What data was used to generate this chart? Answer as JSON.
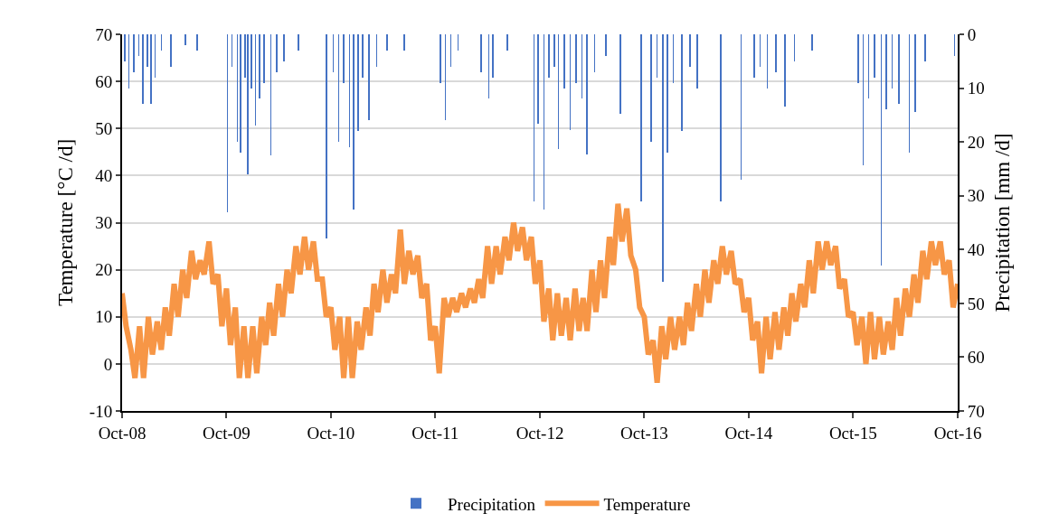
{
  "chart_data": {
    "type": "line",
    "ylabel": "Temperature [°C /d]",
    "y2label": "Precipitation [mm /d]",
    "xlim": [
      "2008-10-01",
      "2016-10-01"
    ],
    "xticks": [
      {
        "value": "2008-10-01",
        "label": "Oct-08"
      },
      {
        "value": "2009-10-01",
        "label": "Oct-09"
      },
      {
        "value": "2010-10-01",
        "label": "Oct-10"
      },
      {
        "value": "2011-10-01",
        "label": "Oct-11"
      },
      {
        "value": "2012-10-01",
        "label": "Oct-12"
      },
      {
        "value": "2013-10-01",
        "label": "Oct-13"
      },
      {
        "value": "2014-10-01",
        "label": "Oct-14"
      },
      {
        "value": "2015-10-01",
        "label": "Oct-15"
      },
      {
        "value": "2016-10-01",
        "label": "Oct-16"
      }
    ],
    "ylim": [
      -10,
      70
    ],
    "yticks": [
      -10,
      0,
      10,
      20,
      30,
      40,
      50,
      60,
      70
    ],
    "y2lim": [
      70,
      0
    ],
    "y2ticks": [
      0,
      10,
      20,
      30,
      40,
      50,
      60,
      70
    ],
    "grid": "y",
    "legend": "bottom",
    "series": [
      {
        "name": "Precipitation",
        "type": "bar",
        "axis": "y2",
        "color": "#4472c4",
        "x": [
          "2008-10-10",
          "2008-10-25",
          "2008-11-12",
          "2008-11-28",
          "2008-12-12",
          "2008-12-28",
          "2009-01-10",
          "2009-01-25",
          "2009-02-15",
          "2009-03-20",
          "2009-05-10",
          "2009-06-20",
          "2009-10-05",
          "2009-10-20",
          "2009-11-08",
          "2009-11-20",
          "2009-12-05",
          "2009-12-15",
          "2009-12-28",
          "2010-01-10",
          "2010-01-25",
          "2010-02-10",
          "2010-03-05",
          "2010-03-25",
          "2010-04-20",
          "2010-06-10",
          "2010-09-15",
          "2010-10-10",
          "2010-10-28",
          "2010-11-15",
          "2010-12-05",
          "2010-12-20",
          "2011-01-05",
          "2011-01-20",
          "2011-02-12",
          "2011-03-10",
          "2011-04-15",
          "2011-06-15",
          "2011-10-20",
          "2011-11-05",
          "2011-11-25",
          "2011-12-20",
          "2012-03-10",
          "2012-04-05",
          "2012-04-20",
          "2012-06-10",
          "2012-09-10",
          "2012-09-25",
          "2012-10-15",
          "2012-11-01",
          "2012-11-20",
          "2012-12-05",
          "2012-12-25",
          "2013-01-15",
          "2013-02-05",
          "2013-02-25",
          "2013-03-15",
          "2013-04-10",
          "2013-05-20",
          "2013-07-10",
          "2013-09-20",
          "2013-10-25",
          "2013-11-15",
          "2013-12-05",
          "2013-12-20",
          "2014-01-10",
          "2014-02-10",
          "2014-03-10",
          "2014-04-05",
          "2014-06-25",
          "2014-09-05",
          "2014-10-20",
          "2014-11-10",
          "2014-12-05",
          "2015-01-05",
          "2015-02-05",
          "2015-03-10",
          "2015-05-10",
          "2015-10-20",
          "2015-11-05",
          "2015-11-25",
          "2015-12-15",
          "2016-01-08",
          "2016-01-25",
          "2016-02-15",
          "2016-03-10",
          "2016-04-15",
          "2016-05-05",
          "2016-06-10",
          "2016-09-20"
        ],
        "values": [
          5,
          10,
          7,
          4,
          13,
          6,
          13,
          8,
          3,
          6,
          2,
          3,
          33,
          6,
          20,
          22,
          8,
          26,
          10,
          17,
          12,
          9,
          22.5,
          7,
          5,
          3,
          38,
          7,
          20,
          9,
          21,
          32.6,
          18,
          8,
          16,
          6,
          3,
          3,
          9,
          16,
          6,
          3,
          7,
          12,
          8,
          3,
          31,
          16.6,
          32.5,
          8,
          6,
          21.4,
          10,
          17.8,
          9,
          12,
          22.4,
          7,
          4,
          14.7,
          31,
          20,
          8,
          46,
          22,
          9,
          18,
          6,
          10,
          31,
          27,
          8,
          6,
          10,
          7,
          13.4,
          5,
          3,
          9,
          24.3,
          12,
          8,
          43,
          14,
          10,
          13,
          22,
          14.5,
          5,
          4
        ]
      },
      {
        "name": "Temperature",
        "color": "#f79646",
        "x": [
          "2008-10-01",
          "2008-10-15",
          "2008-11-01",
          "2008-11-15",
          "2008-12-01",
          "2008-12-15",
          "2009-01-01",
          "2009-01-15",
          "2009-02-01",
          "2009-02-15",
          "2009-03-01",
          "2009-03-15",
          "2009-04-01",
          "2009-04-15",
          "2009-05-01",
          "2009-05-15",
          "2009-06-01",
          "2009-06-15",
          "2009-07-01",
          "2009-07-15",
          "2009-08-01",
          "2009-08-15",
          "2009-09-01",
          "2009-09-15",
          "2009-10-01",
          "2009-10-15",
          "2009-11-01",
          "2009-11-15",
          "2009-12-01",
          "2009-12-15",
          "2010-01-01",
          "2010-01-15",
          "2010-02-01",
          "2010-02-15",
          "2010-03-01",
          "2010-03-15",
          "2010-04-01",
          "2010-04-15",
          "2010-05-01",
          "2010-05-15",
          "2010-06-01",
          "2010-06-15",
          "2010-07-01",
          "2010-07-15",
          "2010-08-01",
          "2010-08-15",
          "2010-09-01",
          "2010-09-15",
          "2010-10-01",
          "2010-10-15",
          "2010-11-01",
          "2010-11-15",
          "2010-12-01",
          "2010-12-15",
          "2011-01-01",
          "2011-01-15",
          "2011-02-01",
          "2011-02-15",
          "2011-03-01",
          "2011-03-15",
          "2011-04-01",
          "2011-04-15",
          "2011-05-01",
          "2011-05-15",
          "2011-06-01",
          "2011-06-15",
          "2011-07-01",
          "2011-07-15",
          "2011-08-01",
          "2011-08-15",
          "2011-09-01",
          "2011-09-15",
          "2011-10-01",
          "2011-10-15",
          "2011-11-01",
          "2011-11-15",
          "2011-12-01",
          "2011-12-15",
          "2012-01-01",
          "2012-01-15",
          "2012-02-01",
          "2012-02-15",
          "2012-03-01",
          "2012-03-15",
          "2012-04-01",
          "2012-04-15",
          "2012-05-01",
          "2012-05-15",
          "2012-06-01",
          "2012-06-15",
          "2012-07-01",
          "2012-07-15",
          "2012-08-01",
          "2012-08-15",
          "2012-09-01",
          "2012-09-15",
          "2012-10-01",
          "2012-10-15",
          "2012-11-01",
          "2012-11-15",
          "2012-12-01",
          "2012-12-15",
          "2013-01-01",
          "2013-01-15",
          "2013-02-01",
          "2013-02-15",
          "2013-03-01",
          "2013-03-15",
          "2013-04-01",
          "2013-04-15",
          "2013-05-01",
          "2013-05-15",
          "2013-06-01",
          "2013-06-15",
          "2013-07-01",
          "2013-07-15",
          "2013-08-01",
          "2013-08-15",
          "2013-09-01",
          "2013-09-15",
          "2013-10-01",
          "2013-10-15",
          "2013-11-01",
          "2013-11-15",
          "2013-12-01",
          "2013-12-15",
          "2014-01-01",
          "2014-01-15",
          "2014-02-01",
          "2014-02-15",
          "2014-03-01",
          "2014-03-15",
          "2014-04-01",
          "2014-04-15",
          "2014-05-01",
          "2014-05-15",
          "2014-06-01",
          "2014-06-15",
          "2014-07-01",
          "2014-07-15",
          "2014-08-01",
          "2014-08-15",
          "2014-09-01",
          "2014-09-15",
          "2014-10-01",
          "2014-10-15",
          "2014-11-01",
          "2014-11-15",
          "2014-12-01",
          "2014-12-15",
          "2015-01-01",
          "2015-01-15",
          "2015-02-01",
          "2015-02-15",
          "2015-03-01",
          "2015-03-15",
          "2015-04-01",
          "2015-04-15",
          "2015-05-01",
          "2015-05-15",
          "2015-06-01",
          "2015-06-15",
          "2015-07-01",
          "2015-07-15",
          "2015-08-01",
          "2015-08-15",
          "2015-09-01",
          "2015-09-15",
          "2015-10-01",
          "2015-10-15",
          "2015-11-01",
          "2015-11-15",
          "2015-12-01",
          "2015-12-15",
          "2016-01-01",
          "2016-01-15",
          "2016-02-01",
          "2016-02-15",
          "2016-03-01",
          "2016-03-15",
          "2016-04-01",
          "2016-04-15",
          "2016-05-01",
          "2016-05-15",
          "2016-06-01",
          "2016-06-15",
          "2016-07-01",
          "2016-07-15",
          "2016-08-01",
          "2016-08-15",
          "2016-09-01",
          "2016-09-15",
          "2016-10-01"
        ],
        "values": [
          15,
          8,
          3,
          -3,
          8,
          -3,
          10,
          2,
          9,
          3,
          12,
          6,
          17,
          10,
          20,
          14,
          24,
          18,
          22,
          19,
          26,
          17,
          19,
          8,
          16,
          4,
          12,
          -3,
          8,
          -3,
          8,
          -2,
          10,
          4,
          13,
          6,
          17,
          10,
          20,
          15,
          25,
          19,
          27,
          20,
          26,
          18,
          18,
          10,
          12,
          3,
          10,
          -3,
          10,
          -3,
          9,
          3,
          12,
          6,
          17,
          11,
          20,
          13,
          19,
          15,
          28.5,
          17,
          24,
          19,
          23,
          14,
          17,
          5,
          8,
          -2,
          14,
          10,
          14,
          11,
          15,
          12,
          16,
          13,
          18,
          14,
          25,
          17,
          25,
          19,
          27,
          22,
          30,
          24,
          29,
          22,
          27,
          17,
          22,
          9,
          16,
          5,
          15,
          6,
          14,
          5,
          16,
          7,
          14,
          7,
          20,
          11,
          22,
          14,
          27,
          21,
          34,
          26,
          33,
          23,
          20,
          12,
          10,
          2,
          5,
          -4,
          8,
          1,
          10,
          3,
          10,
          4,
          13,
          7,
          17,
          10,
          20,
          13,
          22,
          17,
          25,
          19,
          24,
          17,
          18,
          11,
          14,
          5,
          9,
          -2,
          10,
          1,
          11,
          3,
          12,
          6,
          15,
          9,
          17,
          12,
          22,
          15,
          26,
          20,
          26,
          21,
          25,
          16,
          18,
          10,
          11,
          4,
          10,
          0,
          11,
          1,
          10,
          2,
          9,
          3,
          14,
          6,
          16,
          10,
          19,
          13,
          24,
          18,
          26,
          21,
          26,
          19,
          22,
          12,
          17
        ]
      }
    ]
  }
}
